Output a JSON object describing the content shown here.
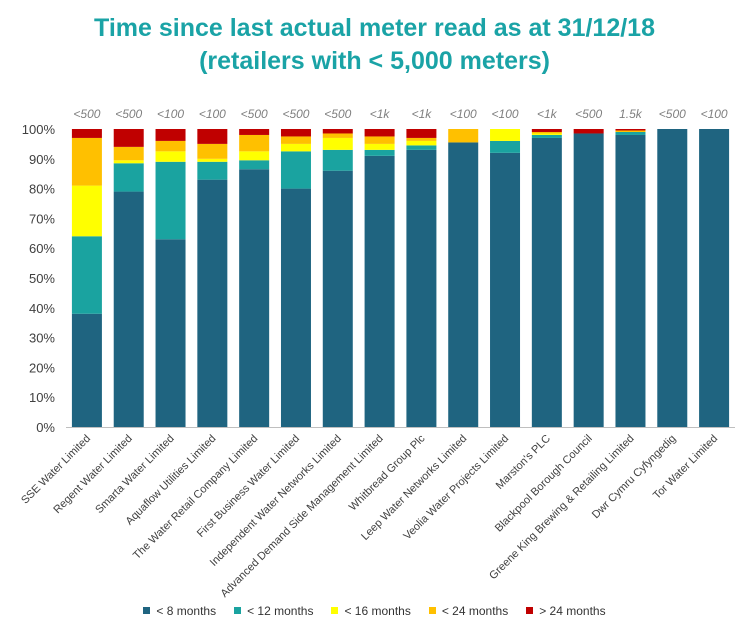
{
  "chart_data": {
    "type": "bar",
    "stacked": true,
    "title_line1": "Time since last actual  meter read as at 31/12/18",
    "title_line2": "(retailers with < 5,000 meters)",
    "y_ticks": [
      "0%",
      "10%",
      "20%",
      "30%",
      "40%",
      "50%",
      "60%",
      "70%",
      "80%",
      "90%",
      "100%"
    ],
    "ylim": [
      0,
      100
    ],
    "grid": false,
    "legend_position": "bottom",
    "categories": [
      "SSE Water Limited",
      "Regent Water Limited",
      "Smarta Water Limited",
      "Aquaflow Utilities Limited",
      "The Water Retail Company Limited",
      "First Business Water Limited",
      "Independent Water Networks Limited",
      "Advanced Demand Side Management Limited",
      "Whitbread Group Plc",
      "Leep Water Networks Limited",
      "Veolia Water Projects Limited",
      "Marston's PLC",
      "Blackpool Borough Council",
      "Greene King Brewing & Retailing Limited",
      "Dwr Cymru Cyfyngedig",
      "Tor Water Limited"
    ],
    "bar_top_labels": [
      "<500",
      "<500",
      "<100",
      "<100",
      "<500",
      "<500",
      "<500",
      "<1k",
      "<1k",
      "<100",
      "<100",
      "<1k",
      "<500",
      "1.5k",
      "<500",
      "<100"
    ],
    "series": [
      {
        "name": "< 8 months",
        "color": "#1f6480",
        "values": [
          38,
          79,
          63,
          83,
          86.5,
          80,
          86,
          91,
          93,
          95.5,
          92,
          97,
          98.5,
          98,
          100,
          100
        ]
      },
      {
        "name": "< 12 months",
        "color": "#1aa3a0",
        "values": [
          26,
          9.5,
          26,
          6,
          3,
          12.5,
          7,
          2,
          1.5,
          0,
          4,
          1,
          0,
          1,
          0,
          0
        ]
      },
      {
        "name": "< 16 months",
        "color": "#ffff00",
        "values": [
          17,
          1,
          3.5,
          1,
          3,
          2.5,
          4,
          2,
          1.5,
          0,
          4,
          0.5,
          0,
          0,
          0,
          0
        ]
      },
      {
        "name": "< 24 months",
        "color": "#ffc000",
        "values": [
          16,
          4.5,
          3.5,
          5,
          5.5,
          2.5,
          1.5,
          2.5,
          1,
          4.5,
          0,
          0.5,
          0,
          0.5,
          0,
          0
        ]
      },
      {
        "name": "> 24 months",
        "color": "#c00000",
        "values": [
          3,
          6,
          4,
          5,
          2,
          2.5,
          1.5,
          2.5,
          3,
          0,
          0,
          1,
          1.5,
          0.5,
          0,
          0
        ]
      }
    ]
  }
}
